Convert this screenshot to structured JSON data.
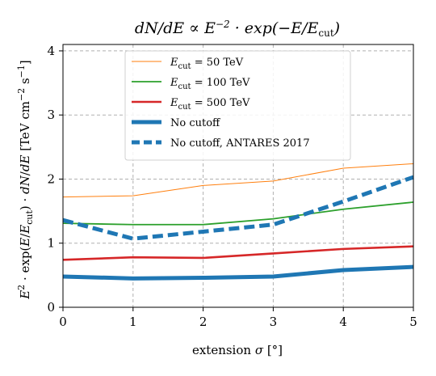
{
  "chart_data": {
    "type": "line",
    "title": "dN/dE ∝ E⁻² · exp(−E/E_cut)",
    "xlabel": "extension σ [°]",
    "ylabel": "E² · exp(E/E_cut) · dN/dE [TeV cm⁻² s⁻¹]",
    "x": [
      0,
      1,
      2,
      3,
      4,
      5
    ],
    "xlim": [
      0,
      5
    ],
    "ylim": [
      0,
      4.1
    ],
    "xticks": [
      "0",
      "1",
      "2",
      "3",
      "4",
      "5"
    ],
    "yticks": [
      "0",
      "1",
      "2",
      "3",
      "4"
    ],
    "grid": true,
    "grid_style": "dashed",
    "legend_position": "upper center",
    "series": [
      {
        "name": "E_cut = 50 TeV",
        "values": [
          1.72,
          1.74,
          1.9,
          1.97,
          2.17,
          2.24
        ],
        "color": "#ff7f0e",
        "width": "thin",
        "style": "solid"
      },
      {
        "name": "E_cut = 100 TeV",
        "values": [
          1.31,
          1.29,
          1.29,
          1.38,
          1.53,
          1.64
        ],
        "color": "#2ca02c",
        "width": "medium",
        "style": "solid"
      },
      {
        "name": "E_cut = 500 TeV",
        "values": [
          0.74,
          0.78,
          0.77,
          0.84,
          0.91,
          0.95
        ],
        "color": "#d62728",
        "width": "medium-thick",
        "style": "solid"
      },
      {
        "name": "No cutoff",
        "values": [
          0.48,
          0.45,
          0.46,
          0.48,
          0.58,
          0.63
        ],
        "color": "#1f77b4",
        "width": "thick",
        "style": "solid"
      },
      {
        "name": "No cutoff, ANTARES 2017",
        "values": [
          1.36,
          1.07,
          1.18,
          1.29,
          1.65,
          2.03
        ],
        "color": "#1f77b4",
        "width": "thick",
        "style": "dashed"
      }
    ]
  }
}
